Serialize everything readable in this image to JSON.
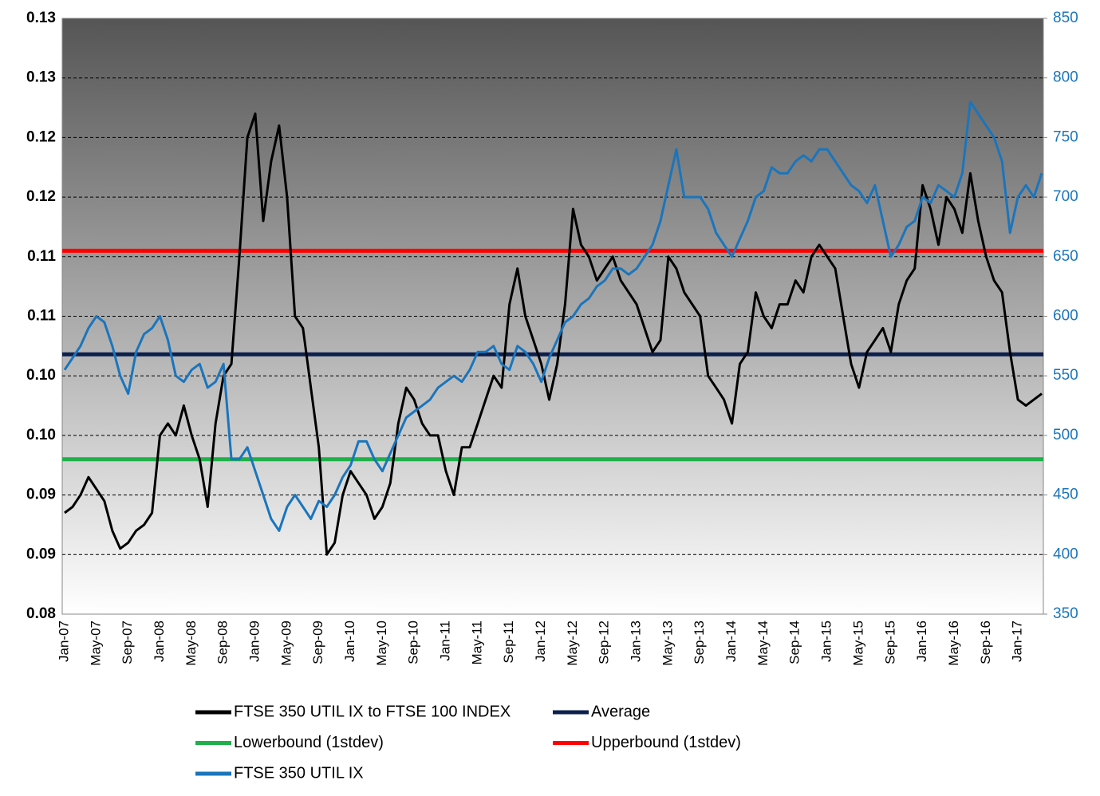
{
  "chart_data": {
    "type": "line",
    "x": [
      "Jan-07",
      null,
      null,
      null,
      "May-07",
      null,
      null,
      null,
      "Sep-07",
      null,
      null,
      null,
      "Jan-08",
      null,
      null,
      null,
      "May-08",
      null,
      null,
      null,
      "Sep-08",
      null,
      null,
      null,
      "Jan-09",
      null,
      null,
      null,
      "May-09",
      null,
      null,
      null,
      "Sep-09",
      null,
      null,
      null,
      "Jan-10",
      null,
      null,
      null,
      "May-10",
      null,
      null,
      null,
      "Sep-10",
      null,
      null,
      null,
      "Jan-11",
      null,
      null,
      null,
      "May-11",
      null,
      null,
      null,
      "Sep-11",
      null,
      null,
      null,
      "Jan-12",
      null,
      null,
      null,
      "May-12",
      null,
      null,
      null,
      "Sep-12",
      null,
      null,
      null,
      "Jan-13",
      null,
      null,
      null,
      "May-13",
      null,
      null,
      null,
      "Sep-13",
      null,
      null,
      null,
      "Jan-14",
      null,
      null,
      null,
      "May-14",
      null,
      null,
      null,
      "Sep-14",
      null,
      null,
      null,
      "Jan-15",
      null,
      null,
      null,
      "May-15",
      null,
      null,
      null,
      "Sep-15",
      null,
      null,
      null,
      "Jan-16",
      null,
      null,
      null,
      "May-16",
      null,
      null,
      null,
      "Sep-16",
      null,
      null,
      null,
      "Jan-17",
      null,
      null,
      null
    ],
    "series": [
      {
        "name": "FTSE 350 UTIL IX to FTSE 100 INDEX",
        "color": "#000000",
        "values": [
          0.0885,
          0.089,
          0.09,
          0.0915,
          0.0905,
          0.0895,
          0.087,
          0.0855,
          0.086,
          0.087,
          0.0875,
          0.0885,
          0.095,
          0.096,
          0.095,
          0.0975,
          0.095,
          0.093,
          0.089,
          0.096,
          0.1,
          0.101,
          0.11,
          0.12,
          0.122,
          0.113,
          0.118,
          0.121,
          0.115,
          0.105,
          0.104,
          0.099,
          0.094,
          0.085,
          0.086,
          0.09,
          0.092,
          0.091,
          0.09,
          0.088,
          0.089,
          0.091,
          0.096,
          0.099,
          0.098,
          0.096,
          0.095,
          0.095,
          0.092,
          0.09,
          0.094,
          0.094,
          0.096,
          0.098,
          0.1,
          0.099,
          0.106,
          0.109,
          0.105,
          0.103,
          0.101,
          0.098,
          0.101,
          0.106,
          0.114,
          0.111,
          0.11,
          0.108,
          0.109,
          0.11,
          0.108,
          0.107,
          0.106,
          0.104,
          0.102,
          0.103,
          0.11,
          0.109,
          0.107,
          0.106,
          0.105,
          0.1,
          0.099,
          0.098,
          0.096,
          0.101,
          0.102,
          0.107,
          0.105,
          0.104,
          0.106,
          0.106,
          0.108,
          0.107,
          0.11,
          0.111,
          0.11,
          0.109,
          0.105,
          0.101,
          0.099,
          0.102,
          0.103,
          0.104,
          0.102,
          0.106,
          0.108,
          0.109,
          0.116,
          0.114,
          0.111,
          0.115,
          0.114,
          0.112,
          0.117,
          0.113,
          0.11,
          0.108,
          0.107,
          0.102,
          0.098,
          0.0975,
          0.098,
          0.0985
        ]
      },
      {
        "name": "Average",
        "color": "#0d1f4d",
        "value": 0.1018
      },
      {
        "name": "Lowerbound (1stdev)",
        "color": "#1fb04a",
        "value": 0.093
      },
      {
        "name": "Upperbound (1stdev)",
        "color": "#ff0000",
        "value": 0.1105
      },
      {
        "name": "FTSE 350 UTIL IX",
        "color": "#1a75bc",
        "axis": "y2",
        "values": [
          555,
          565,
          575,
          590,
          600,
          595,
          575,
          550,
          535,
          570,
          585,
          590,
          600,
          580,
          550,
          545,
          555,
          560,
          540,
          545,
          560,
          480,
          480,
          490,
          470,
          450,
          430,
          420,
          440,
          450,
          440,
          430,
          445,
          440,
          450,
          465,
          475,
          495,
          495,
          480,
          470,
          485,
          500,
          515,
          520,
          525,
          530,
          540,
          545,
          550,
          545,
          555,
          570,
          570,
          575,
          560,
          555,
          575,
          570,
          560,
          545,
          565,
          580,
          595,
          600,
          610,
          615,
          625,
          630,
          640,
          640,
          635,
          640,
          650,
          660,
          680,
          710,
          740,
          700,
          700,
          700,
          690,
          670,
          660,
          650,
          665,
          680,
          700,
          705,
          725,
          720,
          720,
          730,
          735,
          730,
          740,
          740,
          730,
          720,
          710,
          705,
          695,
          710,
          680,
          650,
          660,
          675,
          680,
          700,
          695,
          710,
          705,
          700,
          720,
          780,
          770,
          760,
          750,
          730,
          670,
          700,
          710,
          700,
          720
        ]
      }
    ],
    "ylim": [
      0.08,
      0.13
    ],
    "yticks": [
      0.08,
      {
        "value": 0.085,
        "label": "0.09"
      },
      0.09,
      {
        "value": 0.095,
        "label": "0.10"
      },
      {
        "value": 0.1,
        "label": "0.10"
      },
      {
        "value": 0.105,
        "label": "0.11"
      },
      0.11,
      {
        "value": 0.115,
        "label": "0.12"
      },
      0.12,
      {
        "value": 0.125,
        "label": "0.13"
      },
      0.13
    ],
    "y2lim": [
      350,
      850
    ],
    "y2ticks": [
      350,
      400,
      450,
      500,
      550,
      600,
      650,
      700,
      750,
      800,
      850
    ],
    "grid": true
  }
}
